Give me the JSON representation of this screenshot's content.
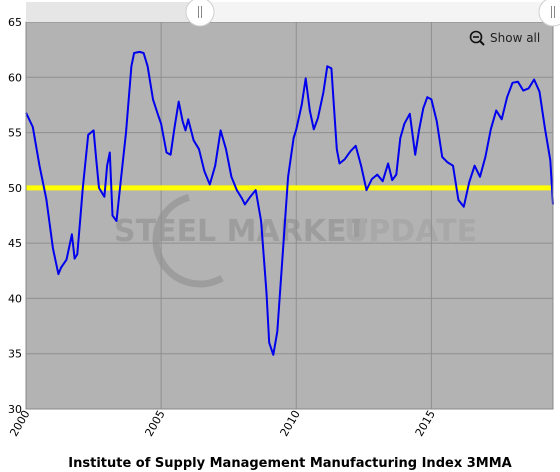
{
  "toolbar": {
    "show_all_label": "Show all"
  },
  "watermark": {
    "brand_bold": "STEEL MARKET",
    "brand_light": "UPDATE"
  },
  "colors": {
    "plot_background": "#b3b3b3",
    "series_line": "#0000ee",
    "reference_line": "#ffff00",
    "grid": "#8f8f8f",
    "watermark": "#8c8c8c"
  },
  "chart_data": {
    "type": "line",
    "title": "Institute of Supply Management Manufacturing Index 3MMA",
    "xlabel": "",
    "ylabel": "",
    "xlim": [
      2000.0,
      2019.5
    ],
    "ylim": [
      30,
      65
    ],
    "x_ticks": [
      2000,
      2005,
      2010,
      2015
    ],
    "y_ticks": [
      30,
      35,
      40,
      45,
      50,
      55,
      60,
      65
    ],
    "grid": true,
    "reference_line": {
      "y": 50
    },
    "series": [
      {
        "x": [
          2000.0,
          2000.25,
          2000.5,
          2000.75,
          2001.0,
          2001.2,
          2001.3,
          2001.5,
          2001.7,
          2001.8,
          2001.9,
          2002.0,
          2002.1,
          2002.3,
          2002.5,
          2002.6,
          2002.7,
          2002.9,
          2003.0,
          2003.1,
          2003.2,
          2003.35,
          2003.5,
          2003.7,
          2003.9,
          2004.0,
          2004.2,
          2004.35,
          2004.5,
          2004.7,
          2004.9,
          2005.0,
          2005.2,
          2005.35,
          2005.5,
          2005.65,
          2005.8,
          2005.9,
          2006.0,
          2006.2,
          2006.4,
          2006.6,
          2006.8,
          2007.0,
          2007.2,
          2007.4,
          2007.6,
          2007.8,
          2008.0,
          2008.1,
          2008.3,
          2008.5,
          2008.7,
          2008.9,
          2009.0,
          2009.15,
          2009.3,
          2009.5,
          2009.7,
          2009.9,
          2010.0,
          2010.2,
          2010.35,
          2010.5,
          2010.65,
          2010.8,
          2011.0,
          2011.15,
          2011.3,
          2011.5,
          2011.6,
          2011.8,
          2012.0,
          2012.2,
          2012.4,
          2012.6,
          2012.8,
          2013.0,
          2013.2,
          2013.4,
          2013.55,
          2013.7,
          2013.85,
          2014.0,
          2014.2,
          2014.4,
          2014.55,
          2014.7,
          2014.85,
          2015.0,
          2015.2,
          2015.4,
          2015.6,
          2015.8,
          2016.0,
          2016.2,
          2016.4,
          2016.6,
          2016.8,
          2017.0,
          2017.2,
          2017.4,
          2017.6,
          2017.8,
          2018.0,
          2018.2,
          2018.4,
          2018.6,
          2018.8,
          2019.0,
          2019.2,
          2019.4,
          2019.5
        ],
        "values": [
          56.8,
          55.5,
          52.0,
          49.0,
          44.5,
          42.2,
          42.8,
          43.5,
          45.8,
          43.6,
          44.0,
          47.0,
          50.0,
          54.8,
          55.2,
          52.5,
          50.0,
          49.2,
          52.0,
          53.2,
          47.5,
          47.0,
          50.5,
          55.0,
          61.0,
          62.2,
          62.3,
          62.2,
          61.0,
          58.0,
          56.5,
          55.8,
          53.2,
          53.0,
          55.5,
          57.8,
          56.0,
          55.2,
          56.2,
          54.3,
          53.5,
          51.5,
          50.3,
          52.0,
          55.2,
          53.5,
          51.0,
          49.8,
          49.0,
          48.5,
          49.2,
          49.8,
          47.0,
          40.5,
          36.0,
          34.9,
          37.0,
          44.0,
          51.0,
          54.5,
          55.3,
          57.5,
          59.9,
          57.0,
          55.3,
          56.3,
          58.6,
          61.0,
          60.8,
          53.5,
          52.2,
          52.6,
          53.3,
          53.8,
          52.0,
          49.8,
          50.8,
          51.2,
          50.6,
          52.2,
          50.7,
          51.2,
          54.5,
          55.8,
          56.7,
          53.0,
          55.3,
          57.2,
          58.2,
          58.0,
          56.0,
          52.8,
          52.3,
          52.0,
          48.9,
          48.3,
          50.5,
          52.0,
          51.0,
          52.8,
          55.3,
          57.0,
          56.2,
          58.2,
          59.5,
          59.6,
          58.8,
          59.0,
          59.8,
          58.7,
          55.4,
          52.5,
          48.5
        ]
      }
    ]
  }
}
